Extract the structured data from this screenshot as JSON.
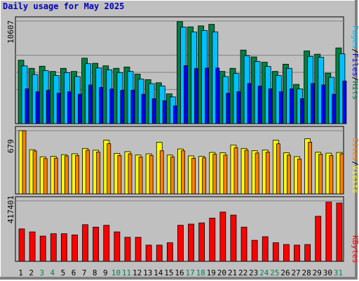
{
  "title": "Daily usage for May 2025",
  "chart_data": [
    {
      "type": "bar",
      "panel": "pages-files-hits",
      "categories": [
        "1",
        "2",
        "3",
        "4",
        "5",
        "6",
        "7",
        "8",
        "9",
        "10",
        "11",
        "12",
        "13",
        "14",
        "15",
        "16",
        "17",
        "18",
        "19",
        "20",
        "21",
        "22",
        "23",
        "24",
        "25",
        "26",
        "27",
        "28",
        "29",
        "30",
        "31"
      ],
      "weekend_categories": [
        "3",
        "4",
        "10",
        "11",
        "17",
        "18",
        "24",
        "25",
        "31"
      ],
      "ymax_label": "10607",
      "ylim": [
        0,
        10607
      ],
      "series": [
        {
          "name": "Hits",
          "color": "#008040",
          "values": [
            6560,
            5720,
            5940,
            5400,
            5720,
            5400,
            6770,
            6240,
            5980,
            5720,
            5860,
            5120,
            4550,
            4230,
            3080,
            10550,
            10010,
            10110,
            10270,
            5400,
            5720,
            7610,
            6900,
            6350,
            5400,
            6150,
            4060,
            7520,
            7180,
            5220,
            7830
          ]
        },
        {
          "name": "Files",
          "color": "#00c0ff",
          "values": [
            5970,
            5080,
            5480,
            4980,
            5280,
            4870,
            6200,
            5760,
            5570,
            5280,
            5400,
            4610,
            4140,
            3900,
            2770,
            9980,
            9480,
            9630,
            9490,
            4870,
            5180,
            7030,
            6430,
            5910,
            4980,
            5720,
            3590,
            6950,
            6860,
            4790,
            7220
          ]
        },
        {
          "name": "Pages",
          "color": "#0000ff",
          "values": [
            3600,
            3300,
            3450,
            3150,
            3300,
            3040,
            4000,
            3750,
            3580,
            3450,
            3450,
            3040,
            2580,
            2370,
            1840,
            6000,
            5700,
            5750,
            5750,
            3150,
            3300,
            4150,
            3880,
            3600,
            3300,
            3600,
            2580,
            4150,
            4000,
            3040,
            4410
          ]
        }
      ]
    },
    {
      "type": "bar",
      "panel": "sites-visits",
      "categories": [
        "1",
        "2",
        "3",
        "4",
        "5",
        "6",
        "7",
        "8",
        "9",
        "10",
        "11",
        "12",
        "13",
        "14",
        "15",
        "16",
        "17",
        "18",
        "19",
        "20",
        "21",
        "22",
        "23",
        "24",
        "25",
        "26",
        "27",
        "28",
        "29",
        "30",
        "31"
      ],
      "ymax_label": "679",
      "ylim": [
        0,
        679
      ],
      "series": [
        {
          "name": "Visits",
          "color": "#ffff00",
          "values": [
            679,
            474,
            398,
            403,
            421,
            431,
            488,
            469,
            577,
            435,
            453,
            417,
            430,
            555,
            417,
            482,
            408,
            403,
            445,
            441,
            525,
            488,
            463,
            472,
            576,
            441,
            400,
            592,
            447,
            437,
            445
          ]
        },
        {
          "name": "Sites",
          "color": "#ff8000",
          "values": [
            679,
            461,
            379,
            384,
            408,
            413,
            469,
            450,
            540,
            412,
            430,
            397,
            413,
            463,
            398,
            463,
            383,
            388,
            426,
            417,
            497,
            469,
            439,
            449,
            538,
            417,
            375,
            555,
            426,
            412,
            430
          ]
        }
      ]
    },
    {
      "type": "bar",
      "panel": "kbytes",
      "categories": [
        "1",
        "2",
        "3",
        "4",
        "5",
        "6",
        "7",
        "8",
        "9",
        "10",
        "11",
        "12",
        "13",
        "14",
        "15",
        "16",
        "17",
        "18",
        "19",
        "20",
        "21",
        "22",
        "23",
        "24",
        "25",
        "26",
        "27",
        "28",
        "29",
        "30",
        "31"
      ],
      "ymax_label": "417401",
      "ylim": [
        0,
        417401
      ],
      "series": [
        {
          "name": "KBytes",
          "color": "#ff0000",
          "values": [
            224140,
            203390,
            174340,
            190940,
            190940,
            182640,
            253200,
            236600,
            249050,
            203390,
            166040,
            166040,
            112080,
            112080,
            128680,
            249050,
            257350,
            265650,
            298850,
            340360,
            319610,
            236600,
            145290,
            170190,
            128680,
            116230,
            112080,
            116230,
            311310,
            409150,
            403000
          ]
        }
      ]
    }
  ],
  "side_labels": {
    "pages": "Pages",
    "files": "Files",
    "hits": "Hits",
    "sites": "Sites",
    "visits": "Visits",
    "kbytes": "KBytes",
    "separator": "/"
  },
  "colors": {
    "title": "#0000bb",
    "weekday_label": "#000000",
    "weekend_label": "#00805c",
    "panel_bg": "#c0c0c0",
    "grid": "#808080",
    "pages_label": "#00c0ff",
    "files_label": "#0000ff",
    "hits_label": "#008040",
    "sites_label": "#ff8000",
    "visits_label": "#ffff00",
    "kbytes_label": "#ff0000"
  }
}
